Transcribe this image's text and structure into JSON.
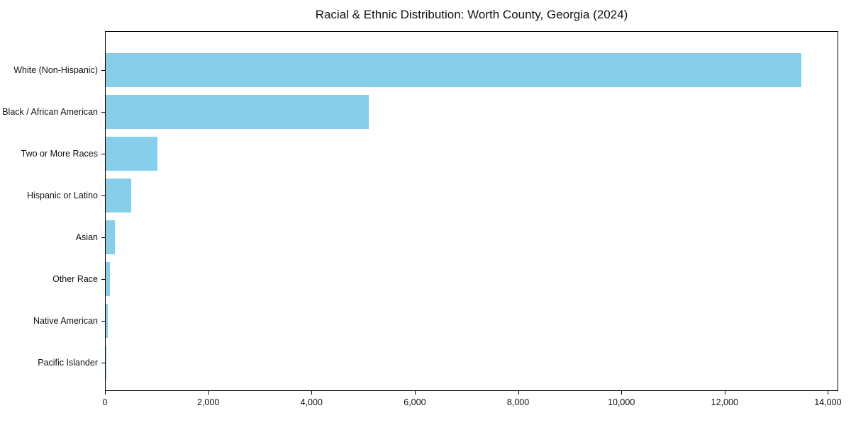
{
  "chart_data": {
    "type": "bar",
    "orientation": "horizontal",
    "title": "Racial & Ethnic Distribution: Worth County, Georgia (2024)",
    "categories": [
      "White (Non-Hispanic)",
      "Black / African American",
      "Two or More Races",
      "Hispanic or Latino",
      "Asian",
      "Other Race",
      "Native American",
      "Pacific Islander"
    ],
    "values": [
      13500,
      5100,
      1000,
      500,
      175,
      80,
      40,
      10
    ],
    "xlabel": "",
    "ylabel": "",
    "xlim": [
      0,
      14200
    ],
    "xticks": [
      0,
      2000,
      4000,
      6000,
      8000,
      10000,
      12000,
      14000
    ],
    "xtick_labels": [
      "0",
      "2,000",
      "4,000",
      "6,000",
      "8,000",
      "10,000",
      "12,000",
      "14,000"
    ],
    "bar_color": "#87CEEB",
    "text_color": "#111111",
    "spine_color": "#000000",
    "grid": false,
    "legend": null
  }
}
